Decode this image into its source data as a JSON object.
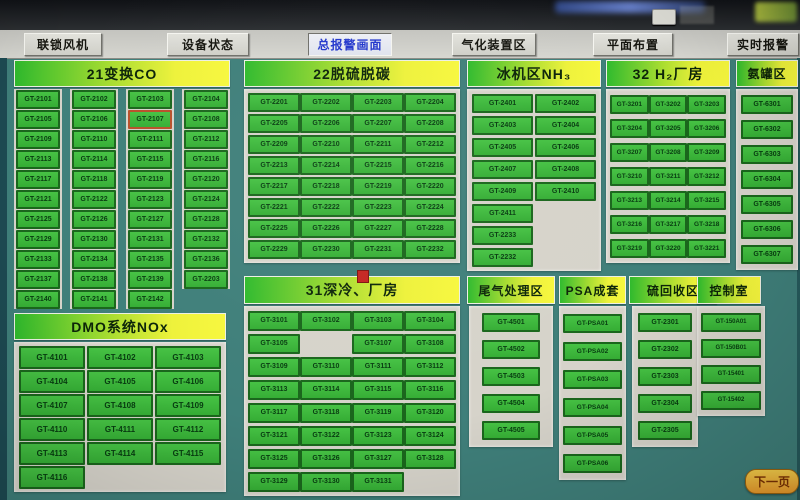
{
  "toolbar": {
    "buttons": [
      {
        "label": "联锁风机",
        "active": false
      },
      {
        "label": "设备状态",
        "active": false
      },
      {
        "label": "总报警画面",
        "active": true
      },
      {
        "label": "气化装置区",
        "active": false
      },
      {
        "label": "平面布置",
        "active": false
      },
      {
        "label": "实时报警",
        "active": false
      }
    ]
  },
  "panels": [
    {
      "id": "p21",
      "title": "21变换CO",
      "columns": 4,
      "alarm": [
        "GT-2107"
      ],
      "tags": [
        "GT-2101",
        "GT-2102",
        "GT-2103",
        "GT-2104",
        "GT-2105",
        "GT-2106",
        "GT-2107",
        "GT-2108",
        "GT-2109",
        "GT-2110",
        "GT-2111",
        "GT-2112",
        "GT-2113",
        "GT-2114",
        "GT-2115",
        "GT-2116",
        "GT-2117",
        "GT-2118",
        "GT-2119",
        "GT-2120",
        "GT-2121",
        "GT-2122",
        "GT-2123",
        "GT-2124",
        "GT-2125",
        "GT-2126",
        "GT-2127",
        "GT-2128",
        "GT-2129",
        "GT-2130",
        "GT-2131",
        "GT-2132",
        "GT-2133",
        "GT-2134",
        "GT-2135",
        "GT-2136",
        "GT-2137",
        "GT-2138",
        "GT-2139",
        "GT-2203",
        "GT-2140",
        "GT-2141",
        "GT-2142"
      ]
    },
    {
      "id": "dmo",
      "title": "DMO系统NOx",
      "columns": 3,
      "tags": [
        "GT-4101",
        "GT-4102",
        "GT-4103",
        "GT-4104",
        "GT-4105",
        "GT-4106",
        "GT-4107",
        "GT-4108",
        "GT-4109",
        "GT-4110",
        "GT-4111",
        "GT-4112",
        "GT-4113",
        "GT-4114",
        "GT-4115",
        "GT-4116"
      ]
    },
    {
      "id": "p22",
      "title": "22脱硫脱碳",
      "columns": 4,
      "tags": [
        "GT-2201",
        "GT-2202",
        "GT-2203",
        "GT-2204",
        "GT-2205",
        "GT-2206",
        "GT-2207",
        "GT-2208",
        "GT-2209",
        "GT-2210",
        "GT-2211",
        "GT-2212",
        "GT-2213",
        "GT-2214",
        "GT-2215",
        "GT-2216",
        "GT-2217",
        "GT-2218",
        "GT-2219",
        "GT-2220",
        "GT-2221",
        "GT-2222",
        "GT-2223",
        "GT-2224",
        "GT-2225",
        "GT-2226",
        "GT-2227",
        "GT-2228",
        "GT-2229",
        "GT-2230",
        "GT-2231",
        "GT-2232"
      ]
    },
    {
      "id": "p31",
      "title": "31深冷、厂房",
      "columns": 4,
      "tags": [
        "GT-3101",
        "GT-3102",
        "GT-3103",
        "GT-3104",
        "GT-3105",
        "",
        "GT-3107",
        "GT-3108",
        "GT-3109",
        "GT-3110",
        "GT-3111",
        "GT-3112",
        "GT-3113",
        "GT-3114",
        "GT-3115",
        "GT-3116",
        "GT-3117",
        "GT-3118",
        "GT-3119",
        "GT-3120",
        "GT-3121",
        "GT-3122",
        "GT-3123",
        "GT-3124",
        "GT-3125",
        "GT-3126",
        "GT-3127",
        "GT-3128",
        "GT-3129",
        "GT-3130",
        "GT-3131",
        ""
      ]
    },
    {
      "id": "nh3",
      "title": "冰机区NH₃",
      "columns": 2,
      "tags": [
        "GT-2401",
        "GT-2402",
        "GT-2403",
        "GT-2404",
        "GT-2405",
        "GT-2406",
        "GT-2407",
        "GT-2408",
        "GT-2409",
        "GT-2410",
        "GT-2411",
        "",
        "GT-2233",
        "",
        "GT-2232",
        ""
      ]
    },
    {
      "id": "h2p",
      "title": "32 H₂厂房",
      "columns": 3,
      "tags": [
        "GT-3201",
        "GT-3202",
        "GT-3203",
        "GT-3204",
        "GT-3205",
        "GT-3206",
        "GT-3207",
        "GT-3208",
        "GT-3209",
        "GT-3210",
        "GT-3211",
        "GT-3212",
        "GT-3213",
        "GT-3214",
        "GT-3215",
        "GT-3216",
        "GT-3217",
        "GT-3218",
        "GT-3219",
        "GT-3220",
        "GT-3221"
      ]
    },
    {
      "id": "ammonia",
      "title": "氨罐区",
      "columns": 1,
      "tags": [
        "GT-6301",
        "GT-6302",
        "GT-6303",
        "GT-6304",
        "GT-6305",
        "GT-6306",
        "GT-6307"
      ]
    },
    {
      "id": "tail",
      "title": "尾气处理区",
      "columns": 1,
      "tags": [
        "GT-4501",
        "GT-4502",
        "GT-4503",
        "GT-4504",
        "GT-4505"
      ]
    },
    {
      "id": "psa",
      "title": "PSA成套",
      "columns": 1,
      "tags": [
        "GT-PSA01",
        "GT-PSA02",
        "GT-PSA03",
        "GT-PSA04",
        "GT-PSA05",
        "GT-PSA06"
      ]
    },
    {
      "id": "sulfur",
      "title": "硫回收区",
      "columns": 1,
      "tags": [
        "GT-2301",
        "GT-2302",
        "GT-2303",
        "GT-2304",
        "GT-2305"
      ]
    },
    {
      "id": "ctrl",
      "title": "控制室",
      "columns": 1,
      "tags": [
        "GT-150A01",
        "GT-150B01",
        "GT-15401",
        "GT-15402"
      ]
    }
  ],
  "next_page": {
    "label": "下一页"
  },
  "colors": {
    "background": "#3f7f7a",
    "button_green": "#3cb93c",
    "button_border": "#1a661c",
    "alarm_border": "#b8502a",
    "header_gradient_start": "#2fba2d",
    "header_gradient_end": "#f7f73d",
    "plate_gray": "#d6d3ca",
    "active_tab_text": "#2236cc",
    "next_button_orange": "#ec9c2c"
  }
}
